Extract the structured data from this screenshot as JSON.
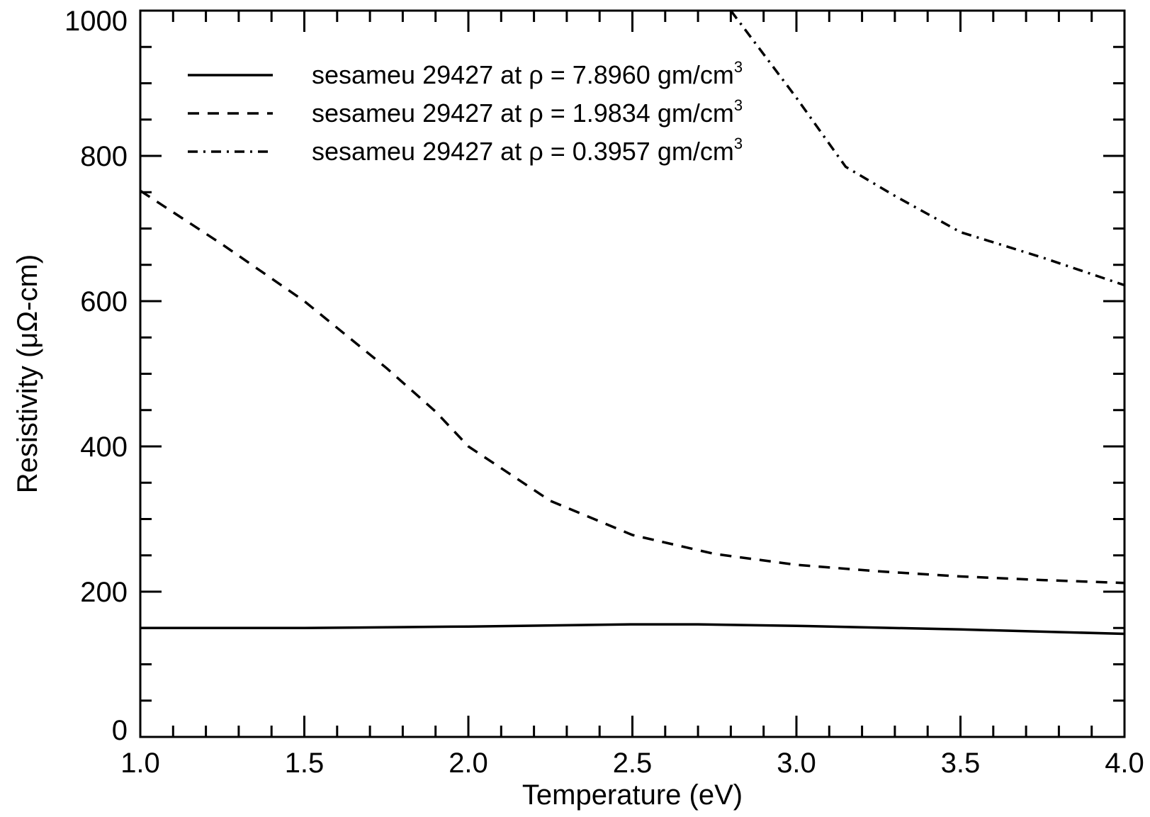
{
  "chart_data": {
    "type": "line",
    "title": "",
    "xlabel": "Temperature (eV)",
    "ylabel": "Resistivity (μΩ-cm)",
    "xlim": [
      1.0,
      4.0
    ],
    "ylim": [
      0,
      1000
    ],
    "x_ticks": [
      "1.0",
      "1.5",
      "2.0",
      "2.5",
      "3.0",
      "3.5",
      "4.0"
    ],
    "y_ticks": [
      "0",
      "200",
      "400",
      "600",
      "800",
      "1000"
    ],
    "grid": false,
    "legend_position": "top-left",
    "series": [
      {
        "name_parts": {
          "prefix": "sesameu 29427 at ρ = 7.8960 gm/cm",
          "superscript": "3"
        },
        "style": "solid",
        "color": "#000000",
        "x": [
          1.0,
          1.5,
          2.0,
          2.5,
          2.7,
          3.0,
          3.5,
          4.0
        ],
        "y": [
          150,
          150,
          152,
          155,
          155,
          153,
          148,
          142
        ]
      },
      {
        "name_parts": {
          "prefix": "sesameu 29427 at ρ = 1.9834 gm/cm",
          "superscript": "3"
        },
        "style": "dashed",
        "color": "#000000",
        "x": [
          1.0,
          1.25,
          1.5,
          1.75,
          1.9,
          2.0,
          2.25,
          2.5,
          2.75,
          3.0,
          3.25,
          3.5,
          3.75,
          4.0
        ],
        "y": [
          752,
          678,
          600,
          508,
          448,
          400,
          325,
          278,
          252,
          237,
          228,
          221,
          216,
          212
        ]
      },
      {
        "name_parts": {
          "prefix": "sesameu 29427 at ρ = 0.3957 gm/cm",
          "superscript": "3"
        },
        "style": "dashdot",
        "color": "#000000",
        "x": [
          2.8,
          3.0,
          3.15,
          3.3,
          3.5,
          3.75,
          4.0
        ],
        "y": [
          1000,
          880,
          785,
          745,
          695,
          660,
          622
        ]
      }
    ]
  }
}
